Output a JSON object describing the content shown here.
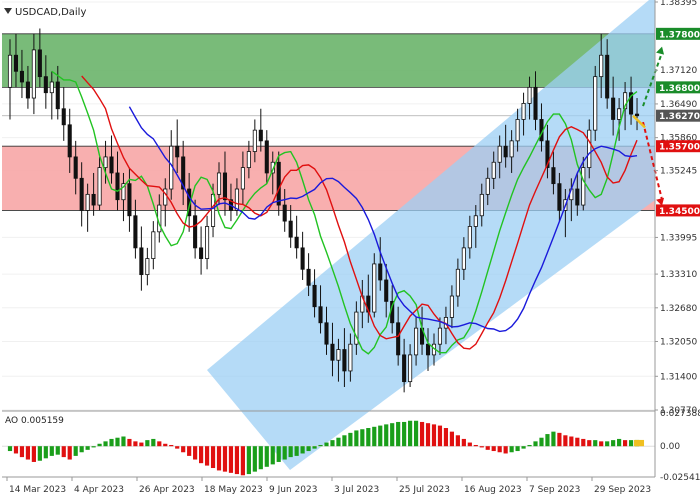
{
  "chart_data": {
    "type": "candlestick",
    "title": "USDCAD,Daily",
    "oscillator_label": "AO 0.005159",
    "y_ticks": [
      "1.38395",
      "1.37800",
      "1.37120",
      "1.36800",
      "1.36490",
      "1.36270",
      "1.35860",
      "1.35700",
      "1.35245",
      "1.34500",
      "1.33995",
      "1.33310",
      "1.32680",
      "1.32050",
      "1.31400",
      "1.30770"
    ],
    "ylim": [
      1.3077,
      1.38395
    ],
    "highlighted_levels": [
      {
        "label": "1.37800",
        "value": 1.378,
        "color": "#1a8c2a"
      },
      {
        "label": "1.36800",
        "value": 1.368,
        "color": "#1a8c2a"
      },
      {
        "label": "1.36270",
        "value": 1.3627,
        "color": "#555555"
      },
      {
        "label": "1.35700",
        "value": 1.357,
        "color": "#e01010"
      },
      {
        "label": "1.34500",
        "value": 1.345,
        "color": "#e01010"
      }
    ],
    "ao_ticks": [
      "0.027388",
      "0.00",
      "-0.025412"
    ],
    "ao_ylim": [
      -0.025412,
      0.027388
    ],
    "x_labels": [
      "14 Mar 2023",
      "4 Apr 2023",
      "26 Apr 2023",
      "18 May 2023",
      "9 Jun 2023",
      "3 Jul 2023",
      "25 Jul 2023",
      "16 Aug 2023",
      "7 Sep 2023",
      "29 Sep 2023"
    ],
    "zones": [
      {
        "name": "resistance-zone",
        "from": 1.368,
        "to": 1.378,
        "color": "#6ab46a"
      },
      {
        "name": "support-zone",
        "from": 1.345,
        "to": 1.357,
        "color": "#f7a6a6"
      }
    ],
    "channel_color": "#9ccff4",
    "ma_colors": {
      "fast": "#22c322",
      "medium": "#e01010",
      "slow": "#1a1adb"
    },
    "candles": [
      [
        1.368,
        1.377,
        1.362,
        1.374
      ],
      [
        1.374,
        1.378,
        1.368,
        1.371
      ],
      [
        1.371,
        1.375,
        1.366,
        1.369
      ],
      [
        1.369,
        1.372,
        1.364,
        1.366
      ],
      [
        1.366,
        1.378,
        1.363,
        1.375
      ],
      [
        1.375,
        1.379,
        1.368,
        1.37
      ],
      [
        1.37,
        1.374,
        1.364,
        1.367
      ],
      [
        1.367,
        1.371,
        1.362,
        1.369
      ],
      [
        1.369,
        1.372,
        1.362,
        1.364
      ],
      [
        1.364,
        1.368,
        1.358,
        1.361
      ],
      [
        1.361,
        1.364,
        1.352,
        1.355
      ],
      [
        1.355,
        1.358,
        1.348,
        1.351
      ],
      [
        1.351,
        1.354,
        1.342,
        1.345
      ],
      [
        1.345,
        1.35,
        1.341,
        1.348
      ],
      [
        1.348,
        1.352,
        1.344,
        1.346
      ],
      [
        1.346,
        1.355,
        1.345,
        1.353
      ],
      [
        1.353,
        1.358,
        1.35,
        1.355
      ],
      [
        1.355,
        1.359,
        1.35,
        1.352
      ],
      [
        1.352,
        1.356,
        1.345,
        1.347
      ],
      [
        1.347,
        1.352,
        1.343,
        1.35
      ],
      [
        1.35,
        1.353,
        1.341,
        1.344
      ],
      [
        1.344,
        1.347,
        1.336,
        1.338
      ],
      [
        1.338,
        1.342,
        1.33,
        1.333
      ],
      [
        1.333,
        1.338,
        1.331,
        1.336
      ],
      [
        1.336,
        1.343,
        1.334,
        1.341
      ],
      [
        1.341,
        1.348,
        1.339,
        1.346
      ],
      [
        1.346,
        1.351,
        1.342,
        1.349
      ],
      [
        1.349,
        1.36,
        1.347,
        1.357
      ],
      [
        1.357,
        1.362,
        1.352,
        1.355
      ],
      [
        1.355,
        1.358,
        1.346,
        1.349
      ],
      [
        1.349,
        1.352,
        1.341,
        1.344
      ],
      [
        1.344,
        1.347,
        1.336,
        1.338
      ],
      [
        1.338,
        1.342,
        1.333,
        1.336
      ],
      [
        1.336,
        1.344,
        1.334,
        1.342
      ],
      [
        1.342,
        1.35,
        1.34,
        1.348
      ],
      [
        1.348,
        1.354,
        1.346,
        1.352
      ],
      [
        1.352,
        1.356,
        1.344,
        1.347
      ],
      [
        1.347,
        1.35,
        1.343,
        1.345
      ],
      [
        1.345,
        1.351,
        1.344,
        1.349
      ],
      [
        1.349,
        1.356,
        1.346,
        1.353
      ],
      [
        1.353,
        1.358,
        1.351,
        1.356
      ],
      [
        1.356,
        1.362,
        1.354,
        1.36
      ],
      [
        1.36,
        1.364,
        1.356,
        1.358
      ],
      [
        1.358,
        1.36,
        1.35,
        1.352
      ],
      [
        1.352,
        1.356,
        1.348,
        1.354
      ],
      [
        1.354,
        1.356,
        1.344,
        1.346
      ],
      [
        1.346,
        1.349,
        1.341,
        1.343
      ],
      [
        1.343,
        1.346,
        1.338,
        1.34
      ],
      [
        1.34,
        1.344,
        1.336,
        1.338
      ],
      [
        1.338,
        1.341,
        1.332,
        1.334
      ],
      [
        1.334,
        1.337,
        1.329,
        1.331
      ],
      [
        1.331,
        1.334,
        1.325,
        1.327
      ],
      [
        1.327,
        1.331,
        1.322,
        1.324
      ],
      [
        1.324,
        1.327,
        1.318,
        1.32
      ],
      [
        1.32,
        1.324,
        1.314,
        1.317
      ],
      [
        1.317,
        1.321,
        1.313,
        1.319
      ],
      [
        1.319,
        1.323,
        1.312,
        1.315
      ],
      [
        1.315,
        1.322,
        1.313,
        1.32
      ],
      [
        1.32,
        1.328,
        1.318,
        1.326
      ],
      [
        1.326,
        1.332,
        1.323,
        1.329
      ],
      [
        1.329,
        1.333,
        1.324,
        1.326
      ],
      [
        1.326,
        1.337,
        1.325,
        1.335
      ],
      [
        1.335,
        1.34,
        1.33,
        1.332
      ],
      [
        1.332,
        1.335,
        1.325,
        1.328
      ],
      [
        1.328,
        1.331,
        1.322,
        1.324
      ],
      [
        1.324,
        1.327,
        1.316,
        1.318
      ],
      [
        1.318,
        1.321,
        1.311,
        1.313
      ],
      [
        1.313,
        1.32,
        1.312,
        1.318
      ],
      [
        1.318,
        1.325,
        1.316,
        1.323
      ],
      [
        1.323,
        1.327,
        1.318,
        1.32
      ],
      [
        1.32,
        1.323,
        1.315,
        1.318
      ],
      [
        1.318,
        1.322,
        1.316,
        1.32
      ],
      [
        1.32,
        1.325,
        1.318,
        1.323
      ],
      [
        1.323,
        1.327,
        1.32,
        1.325
      ],
      [
        1.325,
        1.331,
        1.323,
        1.329
      ],
      [
        1.329,
        1.336,
        1.327,
        1.334
      ],
      [
        1.334,
        1.34,
        1.332,
        1.338
      ],
      [
        1.338,
        1.344,
        1.336,
        1.342
      ],
      [
        1.342,
        1.346,
        1.338,
        1.344
      ],
      [
        1.344,
        1.35,
        1.342,
        1.348
      ],
      [
        1.348,
        1.353,
        1.346,
        1.351
      ],
      [
        1.351,
        1.356,
        1.349,
        1.354
      ],
      [
        1.354,
        1.359,
        1.351,
        1.357
      ],
      [
        1.357,
        1.361,
        1.353,
        1.355
      ],
      [
        1.355,
        1.36,
        1.352,
        1.358
      ],
      [
        1.358,
        1.364,
        1.356,
        1.362
      ],
      [
        1.362,
        1.367,
        1.359,
        1.365
      ],
      [
        1.365,
        1.37,
        1.362,
        1.368
      ],
      [
        1.368,
        1.371,
        1.36,
        1.362
      ],
      [
        1.362,
        1.365,
        1.356,
        1.358
      ],
      [
        1.358,
        1.361,
        1.351,
        1.353
      ],
      [
        1.353,
        1.356,
        1.348,
        1.35
      ],
      [
        1.35,
        1.352,
        1.343,
        1.345
      ],
      [
        1.345,
        1.349,
        1.34,
        1.347
      ],
      [
        1.347,
        1.351,
        1.343,
        1.349
      ],
      [
        1.349,
        1.352,
        1.344,
        1.346
      ],
      [
        1.346,
        1.355,
        1.345,
        1.353
      ],
      [
        1.353,
        1.362,
        1.351,
        1.36
      ],
      [
        1.36,
        1.372,
        1.358,
        1.37
      ],
      [
        1.37,
        1.378,
        1.366,
        1.374
      ],
      [
        1.374,
        1.377,
        1.364,
        1.366
      ],
      [
        1.366,
        1.37,
        1.359,
        1.362
      ],
      [
        1.362,
        1.366,
        1.358,
        1.364
      ],
      [
        1.364,
        1.369,
        1.36,
        1.367
      ],
      [
        1.367,
        1.37,
        1.361,
        1.363
      ],
      [
        1.363,
        1.366,
        1.36,
        1.3627
      ]
    ],
    "ao": [
      -0.004,
      -0.006,
      -0.009,
      -0.011,
      -0.013,
      -0.012,
      -0.01,
      -0.008,
      -0.007,
      -0.009,
      -0.011,
      -0.008,
      -0.005,
      -0.003,
      -0.001,
      0.002,
      0.004,
      0.006,
      0.007,
      0.008,
      0.006,
      0.004,
      0.003,
      0.005,
      0.006,
      0.004,
      0.002,
      0.001,
      -0.002,
      -0.005,
      -0.008,
      -0.011,
      -0.014,
      -0.016,
      -0.018,
      -0.02,
      -0.021,
      -0.022,
      -0.023,
      -0.024,
      -0.023,
      -0.021,
      -0.019,
      -0.017,
      -0.015,
      -0.013,
      -0.011,
      -0.009,
      -0.008,
      -0.006,
      -0.004,
      -0.002,
      0.001,
      0.003,
      0.005,
      0.007,
      0.009,
      0.011,
      0.013,
      0.014,
      0.015,
      0.016,
      0.017,
      0.018,
      0.019,
      0.02,
      0.02,
      0.021,
      0.021,
      0.02,
      0.019,
      0.018,
      0.017,
      0.015,
      0.012,
      0.009,
      0.006,
      0.003,
      0.001,
      -0.001,
      -0.003,
      -0.004,
      -0.005,
      -0.006,
      -0.005,
      -0.004,
      -0.002,
      0.001,
      0.004,
      0.007,
      0.01,
      0.012,
      0.011,
      0.009,
      0.008,
      0.007,
      0.006,
      0.005,
      0.005,
      0.004,
      0.004,
      0.005,
      0.006,
      0.005,
      0.005,
      0.005159
    ]
  }
}
